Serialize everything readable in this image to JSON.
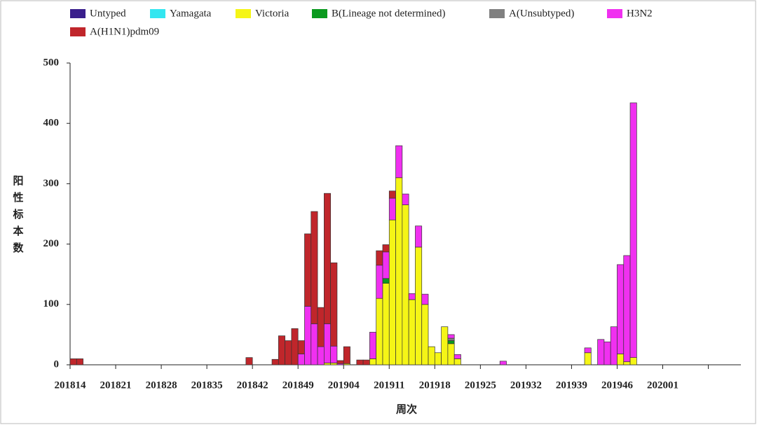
{
  "chart_data": {
    "type": "stacked-bar",
    "x_label": "周次",
    "y_label": "阳性标本数",
    "categories": [
      "201814",
      null,
      null,
      null,
      null,
      null,
      null,
      "201821",
      null,
      null,
      null,
      null,
      null,
      null,
      "201828",
      null,
      null,
      null,
      null,
      null,
      null,
      "201835",
      null,
      null,
      null,
      null,
      null,
      null,
      "201842",
      null,
      null,
      null,
      null,
      null,
      null,
      "201849",
      null,
      null,
      null,
      null,
      null,
      null,
      "201904",
      null,
      null,
      null,
      null,
      null,
      null,
      "201911",
      null,
      null,
      null,
      null,
      null,
      null,
      "201918",
      null,
      null,
      null,
      null,
      null,
      null,
      "201925",
      null,
      null,
      null,
      null,
      null,
      null,
      "201932",
      null,
      null,
      null,
      null,
      null,
      null,
      "201939",
      null,
      null,
      null,
      null,
      null,
      null,
      "201946",
      null,
      null,
      null,
      null,
      null,
      null,
      "202001",
      null,
      null,
      null,
      null,
      null,
      null,
      null,
      null,
      null,
      null,
      null
    ],
    "ylim": [
      0,
      500
    ],
    "yticks": [
      0,
      100,
      200,
      300,
      400,
      500
    ],
    "series": [
      {
        "name": "Untyped",
        "color": "#3a1f8c",
        "values": [
          0,
          0,
          0,
          0,
          0,
          0,
          0,
          0,
          0,
          0,
          0,
          0,
          0,
          0,
          0,
          0,
          0,
          0,
          0,
          0,
          0,
          0,
          0,
          0,
          0,
          0,
          0,
          0,
          0,
          0,
          0,
          0,
          0,
          0,
          0,
          0,
          0,
          0,
          0,
          0,
          0,
          0,
          0,
          0,
          0,
          0,
          0,
          0,
          0,
          0,
          0,
          0,
          0,
          0,
          0,
          0,
          0,
          0,
          0,
          0,
          0,
          0,
          0,
          0,
          0,
          0,
          0,
          0,
          0,
          0,
          0,
          0,
          0,
          0,
          0,
          0,
          0,
          0,
          0,
          0,
          0,
          0,
          0,
          0,
          0,
          0,
          0,
          0,
          0,
          0,
          0,
          0,
          0,
          0,
          0,
          0,
          0,
          0,
          0,
          0,
          0,
          0,
          0
        ]
      },
      {
        "name": "Yamagata",
        "color": "#33e6f0",
        "values": [
          0,
          0,
          0,
          0,
          0,
          0,
          0,
          0,
          0,
          0,
          0,
          0,
          0,
          0,
          0,
          0,
          0,
          0,
          0,
          0,
          0,
          0,
          0,
          0,
          0,
          0,
          0,
          0,
          0,
          0,
          0,
          0,
          0,
          0,
          0,
          0,
          0,
          0,
          0,
          0,
          0,
          0,
          0,
          0,
          0,
          0,
          0,
          0,
          0,
          0,
          0,
          0,
          0,
          0,
          0,
          0,
          0,
          0,
          0,
          0,
          0,
          0,
          0,
          0,
          0,
          0,
          0,
          0,
          0,
          0,
          0,
          0,
          0,
          0,
          0,
          0,
          0,
          0,
          0,
          0,
          0,
          0,
          0,
          0,
          0,
          0,
          0,
          0,
          0,
          0,
          0,
          0,
          0,
          0,
          0,
          0,
          0,
          0,
          0,
          0,
          0,
          0,
          0
        ]
      },
      {
        "name": "Victoria",
        "color": "#f5f516",
        "values": [
          0,
          0,
          0,
          0,
          0,
          0,
          0,
          0,
          0,
          0,
          0,
          0,
          0,
          0,
          0,
          0,
          0,
          0,
          0,
          0,
          0,
          0,
          0,
          0,
          0,
          0,
          0,
          0,
          0,
          0,
          0,
          0,
          0,
          0,
          0,
          0,
          0,
          0,
          0,
          3,
          3,
          0,
          2,
          0,
          0,
          0,
          10,
          110,
          135,
          240,
          310,
          265,
          108,
          195,
          100,
          30,
          20,
          63,
          35,
          10,
          0,
          0,
          0,
          0,
          0,
          0,
          0,
          0,
          0,
          0,
          0,
          0,
          0,
          0,
          0,
          0,
          0,
          0,
          0,
          20,
          0,
          0,
          0,
          0,
          18,
          5,
          12,
          0,
          0,
          0,
          0,
          0,
          0,
          0,
          0,
          0,
          0,
          0,
          0,
          0,
          0,
          0,
          0
        ]
      },
      {
        "name": "B(Lineage not determined)",
        "color": "#0a9a1e",
        "values": [
          0,
          0,
          0,
          0,
          0,
          0,
          0,
          0,
          0,
          0,
          0,
          0,
          0,
          0,
          0,
          0,
          0,
          0,
          0,
          0,
          0,
          0,
          0,
          0,
          0,
          0,
          0,
          0,
          0,
          0,
          0,
          0,
          0,
          0,
          0,
          0,
          0,
          0,
          0,
          0,
          0,
          0,
          0,
          0,
          0,
          0,
          0,
          0,
          8,
          0,
          0,
          0,
          0,
          0,
          0,
          0,
          0,
          0,
          5,
          0,
          0,
          0,
          0,
          0,
          0,
          0,
          0,
          0,
          0,
          0,
          0,
          0,
          0,
          0,
          0,
          0,
          0,
          0,
          0,
          0,
          0,
          0,
          0,
          0,
          0,
          0,
          0,
          0,
          0,
          0,
          0,
          0,
          0,
          0,
          0,
          0,
          0,
          0,
          0,
          0,
          0,
          0,
          0
        ]
      },
      {
        "name": "A(Unsubtyped)",
        "color": "#808080",
        "values": [
          0,
          0,
          0,
          0,
          0,
          0,
          0,
          0,
          0,
          0,
          0,
          0,
          0,
          0,
          0,
          0,
          0,
          0,
          0,
          0,
          0,
          0,
          0,
          0,
          0,
          0,
          0,
          0,
          0,
          0,
          0,
          0,
          0,
          0,
          0,
          0,
          0,
          0,
          0,
          0,
          0,
          0,
          0,
          0,
          0,
          0,
          0,
          0,
          0,
          0,
          0,
          0,
          0,
          0,
          0,
          0,
          0,
          0,
          4,
          0,
          0,
          0,
          0,
          0,
          0,
          0,
          0,
          0,
          0,
          0,
          0,
          0,
          0,
          0,
          0,
          0,
          0,
          0,
          0,
          0,
          0,
          0,
          0,
          0,
          0,
          0,
          0,
          0,
          0,
          0,
          0,
          0,
          0,
          0,
          0,
          0,
          0,
          0,
          0,
          0,
          0,
          0,
          0
        ]
      },
      {
        "name": "H3N2",
        "color": "#f030f0",
        "values": [
          0,
          0,
          0,
          0,
          0,
          0,
          0,
          0,
          0,
          0,
          0,
          0,
          0,
          0,
          0,
          0,
          0,
          0,
          0,
          0,
          0,
          0,
          0,
          0,
          0,
          0,
          0,
          0,
          0,
          0,
          0,
          0,
          0,
          0,
          0,
          18,
          97,
          68,
          30,
          65,
          28,
          2,
          0,
          0,
          0,
          0,
          44,
          55,
          44,
          36,
          53,
          18,
          10,
          35,
          17,
          0,
          0,
          0,
          6,
          7,
          0,
          0,
          0,
          0,
          0,
          0,
          6,
          0,
          0,
          0,
          0,
          0,
          0,
          0,
          0,
          0,
          0,
          0,
          0,
          8,
          0,
          42,
          38,
          63,
          148,
          176,
          422,
          0,
          0,
          0,
          0,
          0,
          0,
          0,
          0,
          0,
          0,
          0,
          0,
          0,
          0,
          0,
          0
        ]
      },
      {
        "name": "A(H1N1)pdm09",
        "color": "#c0262b",
        "values": [
          10,
          10,
          0,
          0,
          0,
          0,
          0,
          0,
          0,
          0,
          0,
          0,
          0,
          0,
          0,
          0,
          0,
          0,
          0,
          0,
          0,
          0,
          0,
          0,
          0,
          0,
          0,
          12,
          0,
          0,
          0,
          9,
          48,
          40,
          60,
          22,
          120,
          186,
          65,
          216,
          138,
          5,
          28,
          0,
          8,
          8,
          0,
          24,
          12,
          12,
          0,
          0,
          0,
          0,
          0,
          0,
          0,
          0,
          0,
          0,
          0,
          0,
          0,
          0,
          0,
          0,
          0,
          0,
          0,
          0,
          0,
          0,
          0,
          0,
          0,
          0,
          0,
          0,
          0,
          0,
          0,
          0,
          0,
          0,
          0,
          0,
          0,
          0,
          0,
          0,
          0,
          0,
          0,
          0,
          0,
          0,
          0,
          0,
          0,
          0,
          0,
          0,
          0
        ]
      }
    ]
  }
}
